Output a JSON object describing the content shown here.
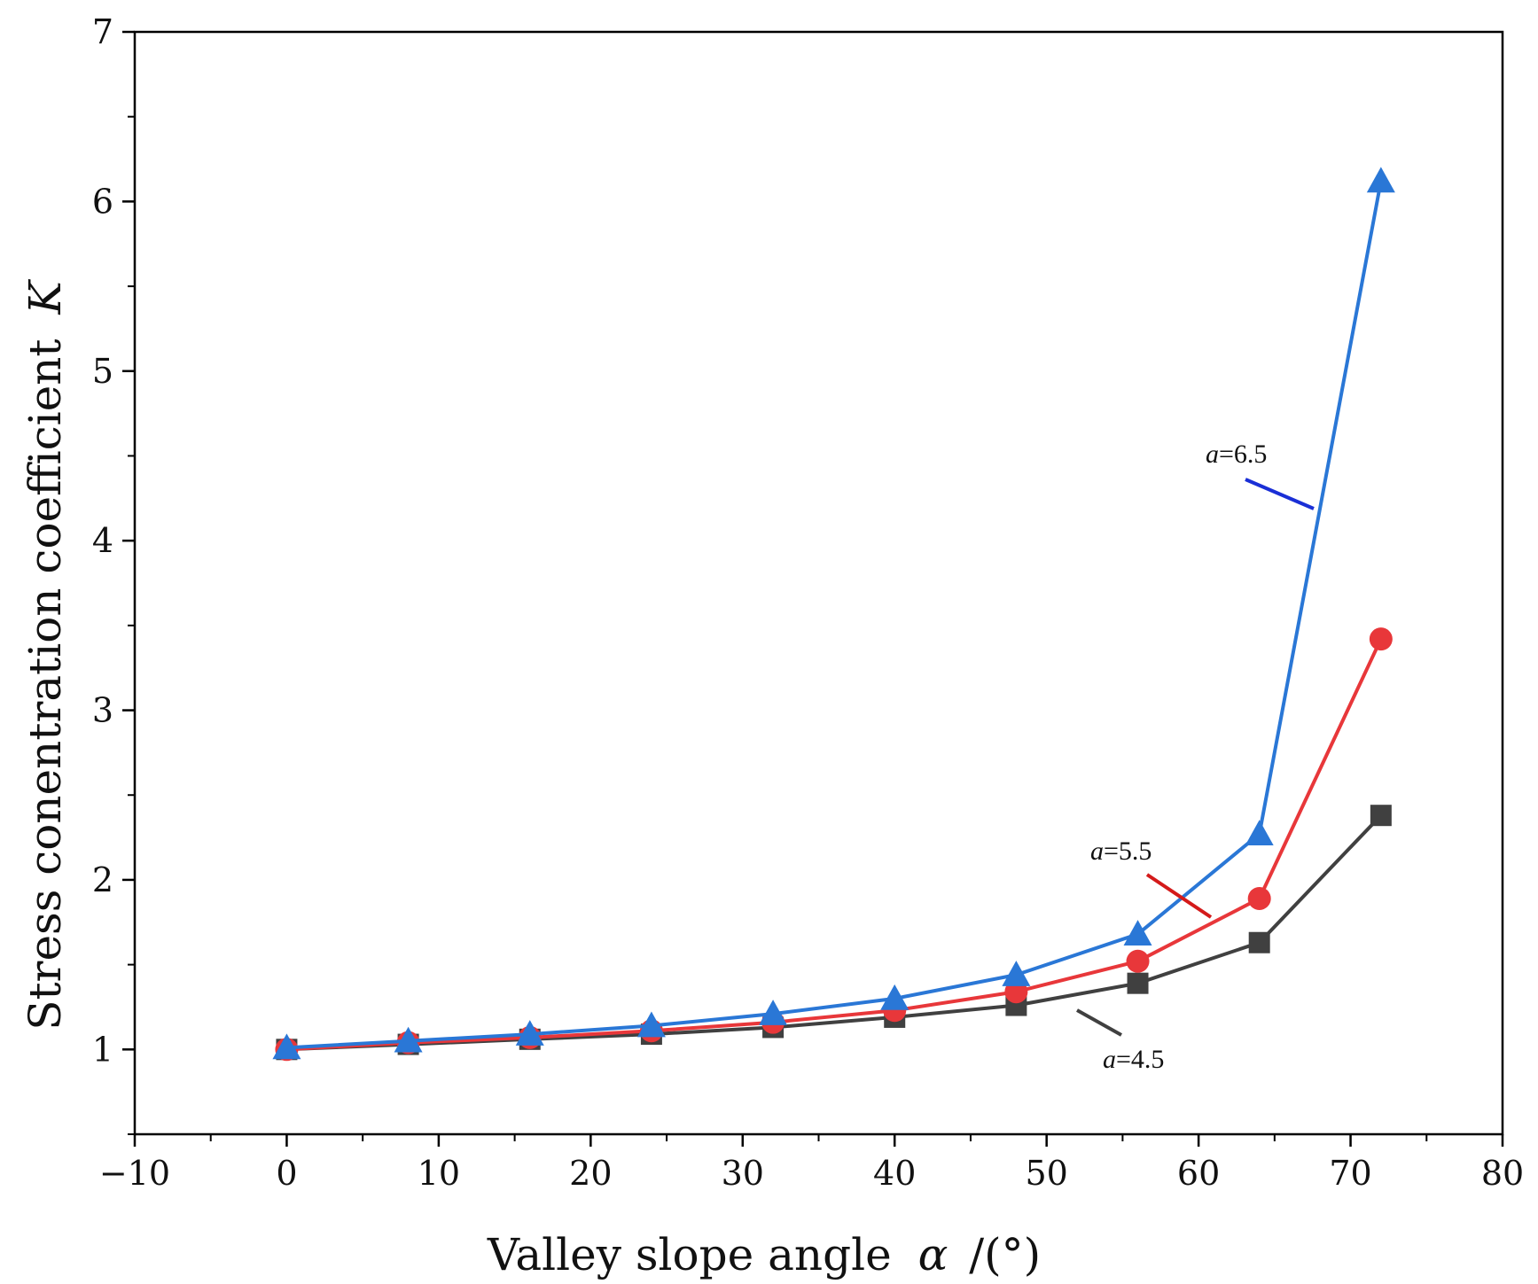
{
  "chart_data": {
    "type": "line",
    "title": "",
    "xlabel": "Valley slope angle",
    "xlabel_symbol": "α",
    "xlabel_unit": "/(°)",
    "ylabel": "Stress conentration coefficient",
    "ylabel_symbol": "K",
    "xlim": [
      -10,
      80
    ],
    "ylim": [
      0.5,
      7
    ],
    "x_ticks": [
      -10,
      0,
      10,
      20,
      30,
      40,
      50,
      60,
      70,
      80
    ],
    "x_tick_labels": [
      "−10",
      "0",
      "10",
      "20",
      "30",
      "40",
      "50",
      "60",
      "70",
      "80"
    ],
    "y_ticks": [
      1,
      2,
      3,
      4,
      5,
      6,
      7
    ],
    "y_tick_labels": [
      "1",
      "2",
      "3",
      "4",
      "5",
      "6",
      "7"
    ],
    "grid": false,
    "x": [
      0,
      8,
      16,
      24,
      32,
      40,
      48,
      56,
      64,
      72
    ],
    "series": [
      {
        "name": "a=4.5",
        "color": "#404040",
        "marker": "square",
        "values": [
          1.0,
          1.03,
          1.06,
          1.09,
          1.13,
          1.19,
          1.26,
          1.39,
          1.63,
          2.38
        ]
      },
      {
        "name": "a=5.5",
        "color": "#e8373a",
        "marker": "circle",
        "values": [
          1.0,
          1.04,
          1.07,
          1.11,
          1.16,
          1.23,
          1.34,
          1.52,
          1.89,
          3.42
        ]
      },
      {
        "name": "a=6.5",
        "color": "#2a77d6",
        "marker": "triangle",
        "values": [
          1.01,
          1.05,
          1.09,
          1.14,
          1.21,
          1.3,
          1.44,
          1.68,
          2.27,
          6.12
        ]
      }
    ],
    "annotations": [
      {
        "series": "a=6.5",
        "italic": "a",
        "rest": "=6.5"
      },
      {
        "series": "a=5.5",
        "italic": "a",
        "rest": "=5.5"
      },
      {
        "series": "a=4.5",
        "italic": "a",
        "rest": "=4.5"
      }
    ],
    "annotation_colors": [
      "#1a2fd6",
      "#d41a1a",
      "#404040"
    ]
  }
}
